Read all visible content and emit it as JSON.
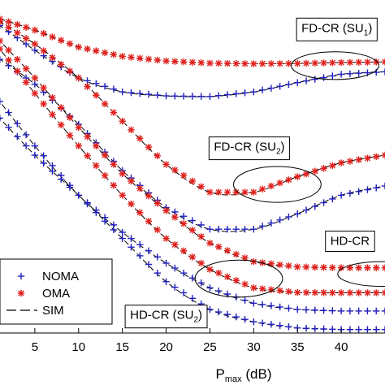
{
  "chart_data": {
    "type": "line",
    "xlabel_main": "P",
    "xlabel_sub": "max",
    "xlabel_unit": " (dB)",
    "xlim": [
      0,
      45
    ],
    "ylim": [
      0,
      1
    ],
    "xticks": [
      5,
      10,
      15,
      20,
      25,
      30,
      35,
      40
    ],
    "grid": false,
    "legend": {
      "placement": "bottom-left",
      "entries": [
        {
          "label": "NOMA",
          "marker": "plus",
          "color": "#1f1fbf"
        },
        {
          "label": "OMA",
          "marker": "star",
          "color": "#e0201c"
        },
        {
          "label": "SIM",
          "marker": "dashed-line",
          "color": "#000000"
        }
      ]
    },
    "annotations": [
      {
        "main": "FD-CR (SU",
        "sub": "1",
        "tail": ")",
        "x": 39.5,
        "y": 0.965
      },
      {
        "main": "FD-CR (SU",
        "sub": "2",
        "tail": ")",
        "x": 29.5,
        "y": 0.58
      },
      {
        "main": "HD-CR",
        "sub": "",
        "tail": "",
        "x": 41.0,
        "y": 0.275
      },
      {
        "main": "HD-CR (SU",
        "sub": "2",
        "tail": ")",
        "x": 20.0,
        "y": 0.035
      }
    ],
    "ellipses": [
      {
        "x": 39.3,
        "y": 0.84,
        "rx": 0.5,
        "ry": 0.045
      },
      {
        "x": 32.7,
        "y": 0.455,
        "rx": 0.5,
        "ry": 0.058
      },
      {
        "x": 28.3,
        "y": 0.15,
        "rx": 0.5,
        "ry": 0.06
      },
      {
        "x": 44.6,
        "y": 0.165,
        "rx": 0.5,
        "ry": 0.04
      }
    ],
    "series": [
      {
        "group": "FD-CR SU1",
        "marker": "star",
        "color": "#e0201c",
        "x": [
          0,
          5,
          10,
          15,
          20,
          25,
          30,
          35,
          40,
          45
        ],
        "y": [
          1.0,
          0.955,
          0.9,
          0.87,
          0.855,
          0.848,
          0.846,
          0.847,
          0.85,
          0.852
        ]
      },
      {
        "group": "FD-CR SU1",
        "marker": "plus",
        "color": "#1f1fbf",
        "x": [
          0,
          5,
          10,
          15,
          20,
          25,
          30,
          35,
          40,
          45
        ],
        "y": [
          0.99,
          0.89,
          0.8,
          0.755,
          0.742,
          0.74,
          0.755,
          0.785,
          0.812,
          0.82
        ]
      },
      {
        "group": "FD-CR SU2",
        "marker": "star",
        "color": "#e0201c",
        "x": [
          0,
          5,
          10,
          15,
          20,
          25,
          30,
          35,
          40,
          45
        ],
        "y": [
          1.0,
          0.91,
          0.8,
          0.66,
          0.52,
          0.43,
          0.43,
          0.48,
          0.525,
          0.55
        ]
      },
      {
        "group": "FD-CR SU2",
        "marker": "plus",
        "color": "#1f1fbf",
        "x": [
          0,
          5,
          10,
          15,
          20,
          25,
          30,
          35,
          40,
          45
        ],
        "y": [
          0.88,
          0.78,
          0.65,
          0.5,
          0.38,
          0.31,
          0.31,
          0.36,
          0.42,
          0.45
        ]
      },
      {
        "group": "HD-CR SU1",
        "marker": "star",
        "color": "#e0201c",
        "x": [
          0,
          5,
          10,
          15,
          20,
          25,
          30,
          35,
          40,
          45
        ],
        "y": [
          0.95,
          0.8,
          0.64,
          0.49,
          0.37,
          0.265,
          0.205,
          0.188,
          0.185,
          0.185
        ]
      },
      {
        "group": "HD-CR SU1",
        "marker": "star",
        "color": "#e0201c",
        "x": [
          0,
          5,
          10,
          15,
          20,
          25,
          30,
          35,
          40,
          45
        ],
        "y": [
          0.93,
          0.75,
          0.58,
          0.42,
          0.28,
          0.18,
          0.12,
          0.105,
          0.104,
          0.104
        ]
      },
      {
        "group": "HD-CR SU2",
        "marker": "plus",
        "color": "#1f1fbf",
        "x": [
          0,
          5,
          10,
          15,
          20,
          25,
          30,
          35,
          40,
          45
        ],
        "y": [
          0.76,
          0.58,
          0.42,
          0.3,
          0.2,
          0.12,
          0.07,
          0.05,
          0.045,
          0.045
        ]
      },
      {
        "group": "HD-CR SU2",
        "marker": "plus",
        "color": "#1f1fbf",
        "x": [
          0,
          5,
          10,
          15,
          20,
          25,
          30,
          35,
          40,
          45
        ],
        "y": [
          0.7,
          0.55,
          0.42,
          0.28,
          0.14,
          0.05,
          0.01,
          -0.01,
          -0.015,
          -0.015
        ]
      }
    ]
  }
}
